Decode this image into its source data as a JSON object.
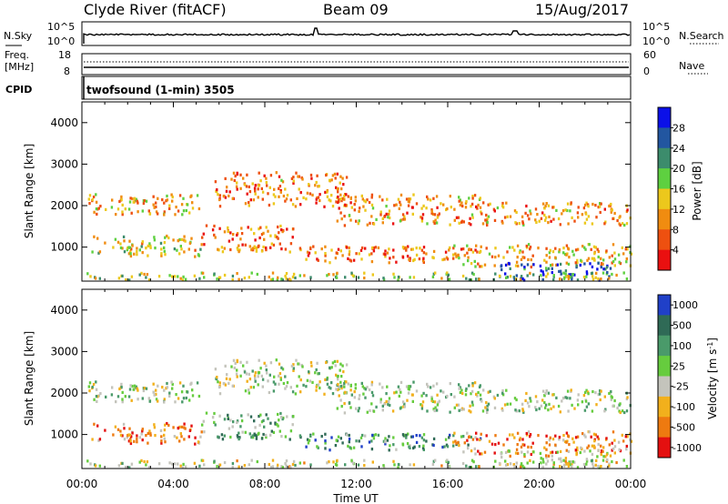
{
  "header": {
    "station": "Clyde River (fitACF)",
    "beam": "Beam 09",
    "date": "15/Aug/2017"
  },
  "top_panels": {
    "nsky_label": "N.Sky",
    "nsearch_label": "N.Search",
    "freq_label_line1": "Freq.",
    "freq_label_line2": "[MHz]",
    "nave_label": "Nave",
    "cpid_label": "CPID",
    "cpid_text": "twofsound (1-min) 3505",
    "noise_ticks_left": [
      "10^5",
      "10^0"
    ],
    "noise_ticks_right": [
      "10^5",
      "10^0"
    ],
    "freq_ticks_left": [
      "18",
      "8"
    ],
    "nave_ticks_right": [
      "60",
      "0"
    ]
  },
  "chart_data": [
    {
      "type": "heatmap",
      "panel": "power",
      "title": "",
      "xlabel": "",
      "ylabel": "Slant Range [km]",
      "xlim": [
        "00:00",
        "24:00"
      ],
      "ylim": [
        180,
        4500
      ],
      "yticks": [
        "1000",
        "2000",
        "3000",
        "4000"
      ],
      "colorbar_label": "Power [dB]",
      "colorbar_ticks": [
        "4",
        "8",
        "12",
        "16",
        "20",
        "24",
        "28"
      ],
      "colors": [
        "#0b10e8",
        "#2256a0",
        "#3c8c6c",
        "#5ed040",
        "#ecc81c",
        "#f08c10",
        "#ee5010",
        "#ea1010"
      ],
      "scatter_regions": [
        {
          "t0": 0.0,
          "t1": 5.1,
          "r0": 1750,
          "r1": 2250,
          "level": 0.35
        },
        {
          "t0": 5.8,
          "t1": 11.6,
          "r0": 1950,
          "r1": 2800,
          "level": 0.28
        },
        {
          "t0": 11.0,
          "t1": 17.4,
          "r0": 1500,
          "r1": 2250,
          "level": 0.3
        },
        {
          "t0": 17.4,
          "t1": 24.0,
          "r0": 1500,
          "r1": 2050,
          "level": 0.32
        },
        {
          "t0": 0.4,
          "t1": 5.2,
          "r0": 750,
          "r1": 1250,
          "level": 0.45
        },
        {
          "t0": 5.2,
          "t1": 9.2,
          "r0": 850,
          "r1": 1500,
          "level": 0.25
        },
        {
          "t0": 9.5,
          "t1": 17.4,
          "r0": 600,
          "r1": 1000,
          "level": 0.22
        },
        {
          "t0": 16.2,
          "t1": 24.0,
          "r0": 500,
          "r1": 1050,
          "level": 0.4
        },
        {
          "t0": 18.2,
          "t1": 23.2,
          "r0": 180,
          "r1": 600,
          "level": 0.82
        },
        {
          "t0": 0.0,
          "t1": 24.0,
          "r0": 180,
          "r1": 360,
          "level": 0.5
        }
      ]
    },
    {
      "type": "heatmap",
      "panel": "velocity",
      "title": "",
      "xlabel": "Time UT",
      "ylabel": "Slant Range [km]",
      "xlim": [
        "00:00",
        "24:00"
      ],
      "ylim": [
        180,
        4500
      ],
      "xticks": [
        "00:00",
        "04:00",
        "08:00",
        "12:00",
        "16:00",
        "20:00",
        "00:00"
      ],
      "yticks": [
        "1000",
        "2000",
        "3000",
        "4000"
      ],
      "colorbar_label": "Velocity [m s^-1]",
      "colorbar_ticks": [
        "1000",
        "500",
        "100",
        "25",
        "-25",
        "-100",
        "-500",
        "-1000"
      ],
      "colors": [
        "#2040c8",
        "#2f6a56",
        "#4a9a6a",
        "#66cc3e",
        "#c4c4bc",
        "#f2b01c",
        "#ee7a10",
        "#e41010"
      ],
      "scatter_regions": [
        {
          "t0": 0.0,
          "t1": 5.1,
          "r0": 1750,
          "r1": 2250,
          "level": 0.5
        },
        {
          "t0": 5.8,
          "t1": 11.6,
          "r0": 1950,
          "r1": 2800,
          "level": 0.5
        },
        {
          "t0": 11.0,
          "t1": 17.4,
          "r0": 1500,
          "r1": 2250,
          "level": 0.52
        },
        {
          "t0": 17.4,
          "t1": 24.0,
          "r0": 1500,
          "r1": 2050,
          "level": 0.5
        },
        {
          "t0": 0.4,
          "t1": 5.2,
          "r0": 750,
          "r1": 1250,
          "level": 0.22
        },
        {
          "t0": 5.2,
          "t1": 9.2,
          "r0": 850,
          "r1": 1500,
          "level": 0.62
        },
        {
          "t0": 9.5,
          "t1": 17.4,
          "r0": 600,
          "r1": 1000,
          "level": 0.7
        },
        {
          "t0": 16.2,
          "t1": 24.0,
          "r0": 500,
          "r1": 1050,
          "level": 0.25
        },
        {
          "t0": 18.2,
          "t1": 23.2,
          "r0": 180,
          "r1": 600,
          "level": 0.4
        },
        {
          "t0": 0.0,
          "t1": 24.0,
          "r0": 180,
          "r1": 360,
          "level": 0.45
        }
      ]
    }
  ]
}
